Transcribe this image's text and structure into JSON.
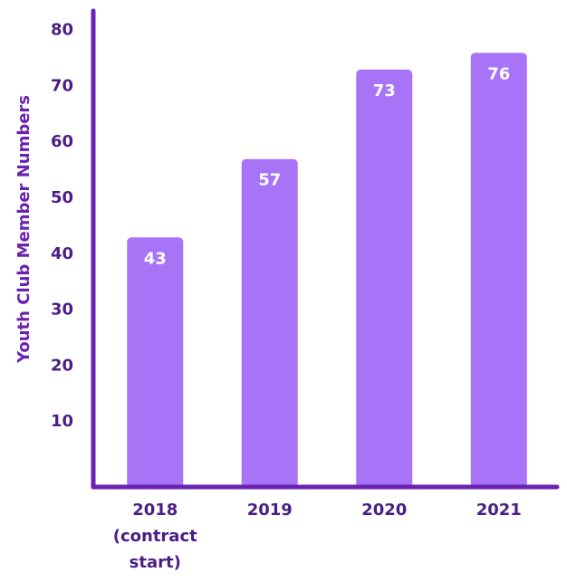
{
  "chart_data": {
    "type": "bar",
    "title": "",
    "xlabel": "",
    "ylabel": "Youth Club Member Numbers",
    "categories": [
      [
        "2018",
        "(contract",
        "start)"
      ],
      [
        "2019"
      ],
      [
        "2020"
      ],
      [
        "2021"
      ]
    ],
    "values": [
      43,
      57,
      73,
      76
    ],
    "ylim": [
      0,
      80
    ],
    "yticks": [
      10,
      20,
      30,
      40,
      50,
      60,
      70,
      80
    ],
    "grid": false,
    "legend": "none",
    "colors": {
      "bar": "#A774F7",
      "axis": "#6B22B0",
      "label_text": "#4A1E84",
      "value_text": "#ffffff"
    }
  }
}
